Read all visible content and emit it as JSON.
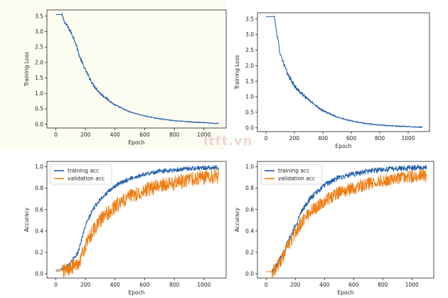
{
  "watermark": "ltft.vn",
  "colors": {
    "train": "#1f5ea8",
    "val": "#f07d12",
    "axis": "#222222",
    "panel_bg_tinted": "#fdfcf1"
  },
  "chart_data": [
    {
      "id": "loss-left",
      "type": "line",
      "title": "",
      "xlabel": "Epoch",
      "ylabel": "Training Loss",
      "xlim": [
        -60,
        1150
      ],
      "ylim": [
        -0.12,
        3.7
      ],
      "xticks": [
        0,
        200,
        400,
        600,
        800,
        1000
      ],
      "yticks": [
        0.0,
        0.5,
        1.0,
        1.5,
        2.0,
        2.5,
        3.0,
        3.5
      ],
      "ytick_labels": [
        "0.0",
        "0.5",
        "1.0",
        "1.5",
        "2.0",
        "2.5",
        "3.0",
        "3.5"
      ],
      "legend": null,
      "series": [
        {
          "name": "training loss",
          "color": "#1f5ea8",
          "x": [
            0,
            40,
            60,
            100,
            130,
            160,
            200,
            250,
            300,
            400,
            500,
            600,
            700,
            800,
            900,
            1000,
            1100
          ],
          "y": [
            3.55,
            3.55,
            3.3,
            3.0,
            2.7,
            2.2,
            1.75,
            1.3,
            1.0,
            0.62,
            0.4,
            0.27,
            0.18,
            0.12,
            0.08,
            0.05,
            0.03
          ],
          "noise": 0.06
        }
      ]
    },
    {
      "id": "loss-right",
      "type": "line",
      "title": "",
      "xlabel": "Epoch",
      "ylabel": "Training Loss",
      "xlim": [
        -60,
        1150
      ],
      "ylim": [
        -0.12,
        3.7
      ],
      "xticks": [
        0,
        200,
        400,
        600,
        800,
        1000
      ],
      "yticks": [
        0.0,
        0.5,
        1.0,
        1.5,
        2.0,
        2.5,
        3.0,
        3.5
      ],
      "ytick_labels": [
        "0.0",
        "0.5",
        "1.0",
        "1.5",
        "2.0",
        "2.5",
        "3.0",
        "3.5"
      ],
      "legend": null,
      "series": [
        {
          "name": "training loss",
          "color": "#1f5ea8",
          "x": [
            0,
            60,
            70,
            100,
            150,
            200,
            250,
            300,
            400,
            500,
            600,
            700,
            800,
            900,
            1000,
            1100
          ],
          "y": [
            3.58,
            3.58,
            3.2,
            2.4,
            1.75,
            1.35,
            1.1,
            0.9,
            0.55,
            0.35,
            0.22,
            0.14,
            0.09,
            0.06,
            0.04,
            0.02
          ],
          "noise": 0.07
        }
      ]
    },
    {
      "id": "acc-left",
      "type": "line",
      "title": "",
      "xlabel": "Epoch",
      "ylabel": "Accuracy",
      "xlim": [
        -60,
        1150
      ],
      "ylim": [
        -0.04,
        1.05
      ],
      "xticks": [
        0,
        200,
        400,
        600,
        800,
        1000
      ],
      "yticks": [
        0.0,
        0.2,
        0.4,
        0.6,
        0.8,
        1.0
      ],
      "ytick_labels": [
        "0.0",
        "0.2",
        "0.4",
        "0.6",
        "0.8",
        "1.0"
      ],
      "legend": "upper-left",
      "series": [
        {
          "name": "training acc",
          "color": "#1f5ea8",
          "x": [
            0,
            50,
            100,
            150,
            200,
            250,
            300,
            400,
            500,
            600,
            700,
            800,
            900,
            1000,
            1100
          ],
          "y": [
            0.03,
            0.05,
            0.1,
            0.2,
            0.45,
            0.6,
            0.7,
            0.82,
            0.89,
            0.93,
            0.96,
            0.97,
            0.985,
            0.99,
            0.995
          ],
          "noise": 0.02
        },
        {
          "name": "validation acc",
          "color": "#f07d12",
          "x": [
            0,
            50,
            100,
            150,
            200,
            250,
            300,
            400,
            500,
            600,
            700,
            800,
            900,
            1000,
            1100
          ],
          "y": [
            0.02,
            0.03,
            0.05,
            0.1,
            0.25,
            0.4,
            0.5,
            0.63,
            0.72,
            0.78,
            0.82,
            0.85,
            0.88,
            0.9,
            0.91
          ],
          "noise": 0.07
        }
      ]
    },
    {
      "id": "acc-right",
      "type": "line",
      "title": "",
      "xlabel": "Epoch",
      "ylabel": "Accuracy",
      "xlim": [
        -60,
        1150
      ],
      "ylim": [
        -0.04,
        1.05
      ],
      "xticks": [
        0,
        200,
        400,
        600,
        800,
        1000
      ],
      "yticks": [
        0.0,
        0.2,
        0.4,
        0.6,
        0.8,
        1.0
      ],
      "ytick_labels": [
        "0.0",
        "0.2",
        "0.4",
        "0.6",
        "0.8",
        "1.0"
      ],
      "legend": "upper-left",
      "series": [
        {
          "name": "training acc",
          "color": "#1f5ea8",
          "x": [
            0,
            40,
            60,
            100,
            150,
            200,
            250,
            300,
            400,
            500,
            600,
            700,
            800,
            900,
            1000,
            1100
          ],
          "y": [
            0.02,
            0.02,
            0.05,
            0.15,
            0.3,
            0.45,
            0.6,
            0.7,
            0.83,
            0.9,
            0.93,
            0.96,
            0.975,
            0.985,
            0.99,
            0.995
          ],
          "noise": 0.025
        },
        {
          "name": "validation acc",
          "color": "#f07d12",
          "x": [
            0,
            40,
            60,
            100,
            150,
            200,
            250,
            300,
            400,
            500,
            600,
            700,
            800,
            900,
            1000,
            1100
          ],
          "y": [
            0.02,
            0.02,
            0.04,
            0.12,
            0.26,
            0.38,
            0.5,
            0.58,
            0.68,
            0.76,
            0.8,
            0.84,
            0.87,
            0.89,
            0.91,
            0.92
          ],
          "noise": 0.06
        }
      ]
    }
  ]
}
